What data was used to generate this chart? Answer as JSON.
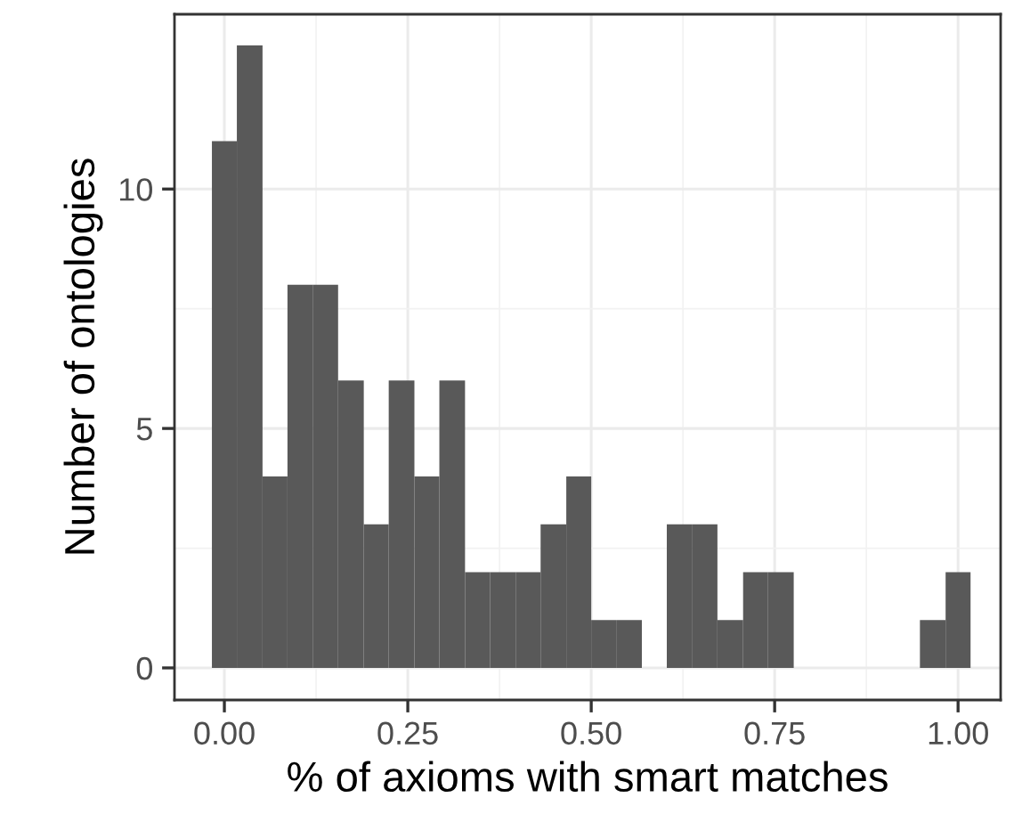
{
  "chart_data": {
    "type": "histogram",
    "xlabel": "% of axioms with smart matches",
    "ylabel": "Number of ontologies",
    "bins": [
      -0.017,
      0.017,
      0.052,
      0.086,
      0.121,
      0.155,
      0.19,
      0.224,
      0.259,
      0.293,
      0.328,
      0.362,
      0.397,
      0.431,
      0.466,
      0.5,
      0.534,
      0.569,
      0.603,
      0.638,
      0.672,
      0.707,
      0.741,
      0.776,
      0.948,
      0.983,
      1.017
    ],
    "values": [
      11,
      13,
      4,
      8,
      8,
      6,
      3,
      6,
      4,
      6,
      2,
      2,
      2,
      3,
      4,
      1,
      1,
      0,
      3,
      3,
      1,
      2,
      2,
      0,
      1,
      2
    ],
    "color": "#595959",
    "xlim": [
      -0.068,
      1.058
    ],
    "ylim": [
      -0.67,
      13.65
    ],
    "xticks": [
      {
        "value": 0,
        "label": "0.00"
      },
      {
        "value": 0.25,
        "label": "0.25"
      },
      {
        "value": 0.5,
        "label": "0.50"
      },
      {
        "value": 0.75,
        "label": "0.75"
      },
      {
        "value": 1,
        "label": "1.00"
      }
    ],
    "yticks": [
      0,
      5,
      10
    ],
    "grid": true
  }
}
